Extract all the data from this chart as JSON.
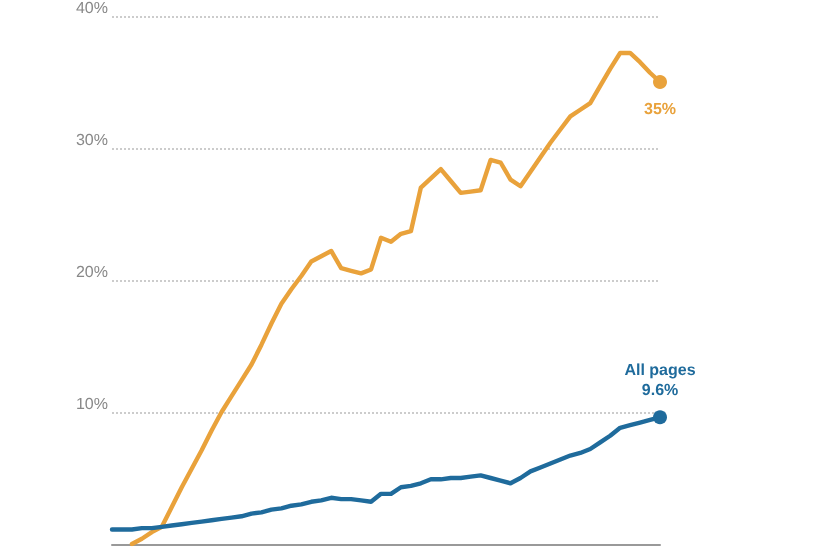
{
  "chart_data": {
    "type": "line",
    "categories": [
      null,
      null,
      null,
      null,
      null,
      null,
      null,
      null,
      null,
      null,
      null,
      null,
      null,
      null,
      null,
      null,
      null,
      null,
      null,
      null,
      null,
      null,
      null,
      null,
      null,
      null,
      null,
      null,
      null,
      null,
      null,
      null,
      null,
      null,
      null,
      null,
      null,
      null,
      null,
      null,
      null,
      null,
      null,
      null,
      null,
      null,
      null,
      null,
      null,
      null,
      null,
      null,
      null,
      null,
      null,
      null
    ],
    "series": [
      {
        "color": "#e9a23b",
        "values": [
          null,
          null,
          0,
          0.4,
          0.9,
          1.3,
          2.8,
          4.3,
          5.7,
          7.1,
          8.6,
          10,
          11.2,
          12.4,
          13.6,
          15.1,
          16.7,
          18.2,
          19.3,
          20.3,
          21.4,
          21.8,
          22.2,
          20.9,
          20.7,
          20.5,
          20.8,
          23.2,
          22.9,
          23.5,
          23.7,
          27,
          27.7,
          28.4,
          27.5,
          26.6,
          26.7,
          26.8,
          29.1,
          28.9,
          27.6,
          27.1,
          28.2,
          29.3,
          30.4,
          31.4,
          32.4,
          32.9,
          33.4,
          34.7,
          36,
          37.2,
          37.2,
          36.5,
          35.7,
          35
        ],
        "value_labels": [
          null,
          null,
          null,
          null,
          null,
          null,
          null,
          null,
          null,
          null,
          null,
          null,
          null,
          null,
          null,
          null,
          null,
          null,
          null,
          null,
          null,
          null,
          null,
          null,
          null,
          null,
          null,
          null,
          null,
          null,
          null,
          null,
          null,
          null,
          null,
          null,
          null,
          null,
          null,
          null,
          null,
          null,
          null,
          null,
          null,
          null,
          null,
          null,
          null,
          null,
          null,
          null,
          null,
          null,
          null,
          "35%"
        ]
      },
      {
        "name": "All pages",
        "color": "#1f6b9c",
        "values": [
          1.1,
          1.1,
          1.1,
          1.2,
          1.2,
          1.3,
          1.4,
          1.5,
          1.6,
          1.7,
          1.8,
          1.9,
          2.0,
          2.1,
          2.3,
          2.4,
          2.6,
          2.7,
          2.9,
          3.0,
          3.2,
          3.3,
          3.5,
          3.4,
          3.4,
          3.3,
          3.2,
          3.8,
          3.8,
          4.3,
          4.4,
          4.6,
          4.9,
          4.9,
          5.0,
          5.0,
          5.1,
          5.2,
          5.0,
          4.8,
          4.6,
          5.0,
          5.5,
          5.8,
          6.1,
          6.4,
          6.7,
          6.9,
          7.2,
          7.7,
          8.2,
          8.8,
          9.0,
          9.2,
          9.4,
          9.6
        ],
        "value_labels": [
          null,
          null,
          null,
          null,
          null,
          null,
          null,
          null,
          null,
          null,
          null,
          null,
          null,
          null,
          null,
          null,
          null,
          null,
          null,
          null,
          null,
          null,
          null,
          null,
          null,
          null,
          null,
          null,
          null,
          null,
          null,
          null,
          null,
          null,
          null,
          null,
          null,
          null,
          null,
          null,
          null,
          null,
          null,
          null,
          null,
          null,
          null,
          null,
          null,
          null,
          null,
          null,
          null,
          null,
          null,
          "9.6%"
        ]
      }
    ],
    "ylim": [
      0,
      40
    ],
    "yticks": [
      {
        "value": 0,
        "label": null
      },
      {
        "value": 10,
        "label": "10%"
      },
      {
        "value": 20,
        "label": "20%"
      },
      {
        "value": 30,
        "label": "30%"
      },
      {
        "value": 40,
        "label": "40%"
      }
    ],
    "grid": "y",
    "legend": false,
    "line_style": "solid"
  }
}
